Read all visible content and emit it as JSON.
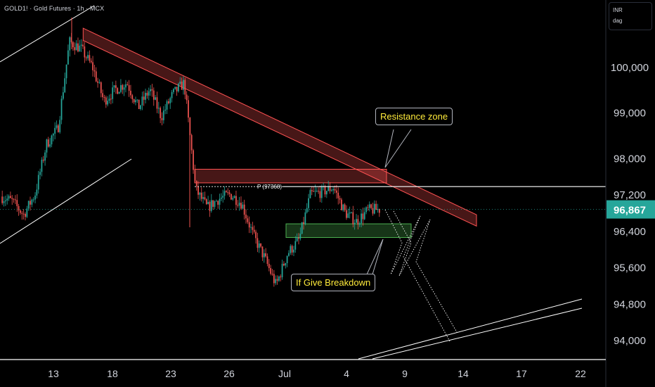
{
  "header": {
    "symbol_title": "GOLD1! · Gold Futures · 1h · MCX"
  },
  "scale_box": {
    "currency": "INR",
    "mode": "dag"
  },
  "price_axis": {
    "labels": [
      "100,000",
      "99,000",
      "98,000",
      "97,200",
      "96,400",
      "95,600",
      "94,800",
      "94,000"
    ],
    "current_price": "96,867"
  },
  "time_axis": {
    "labels": [
      "13",
      "18",
      "23",
      "26",
      "Jul",
      "4",
      "9",
      "14",
      "17",
      "22"
    ]
  },
  "annotations": {
    "pivot_label": "P (97368)",
    "resistance_callout": "Resistance zone",
    "breakdown_callout": "If Give Breakdown"
  },
  "colors": {
    "background": "#000000",
    "up_candle": "#26a69a",
    "down_candle": "#ef5350",
    "resistance_zone": "#ff5252",
    "support_zone": "#4caf50",
    "current_price_badge": "#26a69a",
    "callout_text": "#ffeb3b",
    "channel_lines": "#ffffff"
  },
  "chart_data": {
    "type": "candlestick",
    "symbol": "GOLD1!",
    "timeframe": "1h",
    "x_axis_ticks": [
      "13",
      "18",
      "23",
      "26",
      "Jul",
      "4",
      "9",
      "14",
      "17",
      "22"
    ],
    "y_axis_ticks": [
      100000,
      99000,
      98000,
      97200,
      96400,
      95600,
      94800,
      94000
    ],
    "current_price": 96867,
    "pivot_level": 97368,
    "price_path_close": [
      {
        "t": "Jun 11",
        "v": 97150
      },
      {
        "t": "Jun 12",
        "v": 97050
      },
      {
        "t": "Jun 12",
        "v": 96750
      },
      {
        "t": "Jun 13",
        "v": 97200
      },
      {
        "t": "Jun 13",
        "v": 98300
      },
      {
        "t": "Jun 13",
        "v": 98650
      },
      {
        "t": "Jun 14",
        "v": 100550
      },
      {
        "t": "Jun 15",
        "v": 100400
      },
      {
        "t": "Jun 16",
        "v": 100000
      },
      {
        "t": "Jun 17",
        "v": 99250
      },
      {
        "t": "Jun 18",
        "v": 99500
      },
      {
        "t": "Jun 19",
        "v": 99650
      },
      {
        "t": "Jun 20",
        "v": 99100
      },
      {
        "t": "Jun 21",
        "v": 99500
      },
      {
        "t": "Jun 22",
        "v": 98900
      },
      {
        "t": "Jun 23",
        "v": 99400
      },
      {
        "t": "Jun 24",
        "v": 99650
      },
      {
        "t": "Jun 24",
        "v": 97300
      },
      {
        "t": "Jun 25",
        "v": 96900
      },
      {
        "t": "Jun 25",
        "v": 97100
      },
      {
        "t": "Jun 26",
        "v": 97200
      },
      {
        "t": "Jun 27",
        "v": 97000
      },
      {
        "t": "Jun 28",
        "v": 96300
      },
      {
        "t": "Jun 29",
        "v": 95800
      },
      {
        "t": "Jun 30",
        "v": 95200
      },
      {
        "t": "Jun 30",
        "v": 95900
      },
      {
        "t": "Jul 1",
        "v": 96200
      },
      {
        "t": "Jul 2",
        "v": 97200
      },
      {
        "t": "Jul 3",
        "v": 97250
      },
      {
        "t": "Jul 3",
        "v": 97350
      },
      {
        "t": "Jul 4",
        "v": 96800
      },
      {
        "t": "Jul 5",
        "v": 96600
      },
      {
        "t": "Jul 6",
        "v": 96850
      },
      {
        "t": "Jul 7",
        "v": 96867
      }
    ],
    "resistance_zone": {
      "from": "Jun 14",
      "to": "Jul 15",
      "upper_start": 100850,
      "upper_end": 96750,
      "lower_start": 100580,
      "lower_end": 96500
    },
    "horizontal_resistance_box": {
      "from": "Jun 24",
      "to": "Jul 8",
      "top": 97750,
      "bottom": 97450
    },
    "support_box": {
      "from": "Jul 1",
      "to": "Jul 9",
      "top": 96550,
      "bottom": 96250
    },
    "projection": [
      {
        "t": "Jul 8",
        "v": 96650
      },
      {
        "t": "Jul 8",
        "v": 95400
      },
      {
        "t": "Jul 9",
        "v": 96000
      },
      {
        "t": "Jul 10",
        "v": 94950
      },
      {
        "t": "Jul 10",
        "v": 95300
      },
      {
        "t": "Jul 12",
        "v": 94000
      }
    ]
  }
}
